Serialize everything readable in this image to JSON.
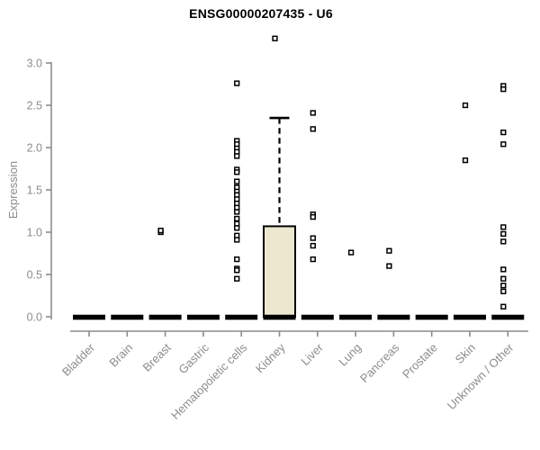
{
  "chart_data": {
    "type": "boxplot",
    "title": "ENSG00000207435 - U6",
    "ylabel": "Expression",
    "xlabel": "",
    "ylim": [
      0,
      3.4
    ],
    "yticks": [
      0.0,
      0.5,
      1.0,
      1.5,
      2.0,
      2.5,
      3.0
    ],
    "grid": false,
    "legend": null,
    "categories": [
      "Bladder",
      "Brain",
      "Breast",
      "Gastric",
      "Hematopoietic cells",
      "Kidney",
      "Liver",
      "Lung",
      "Pancreas",
      "Prostate",
      "Skin",
      "Unknown / Other"
    ],
    "boxes": [
      {
        "category": "Bladder",
        "q1": 0,
        "median": 0,
        "q3": 0,
        "whisker_low": 0,
        "whisker_high": 0,
        "outliers": []
      },
      {
        "category": "Brain",
        "q1": 0,
        "median": 0,
        "q3": 0,
        "whisker_low": 0,
        "whisker_high": 0,
        "outliers": []
      },
      {
        "category": "Breast",
        "q1": 0,
        "median": 0,
        "q3": 0,
        "whisker_low": 0,
        "whisker_high": 0,
        "outliers": [
          1.0,
          1.02
        ]
      },
      {
        "category": "Gastric",
        "q1": 0,
        "median": 0,
        "q3": 0,
        "whisker_low": 0,
        "whisker_high": 0,
        "outliers": []
      },
      {
        "category": "Hematopoietic cells",
        "q1": 0,
        "median": 0,
        "q3": 0,
        "whisker_low": 0,
        "whisker_high": 0,
        "outliers": [
          2.76,
          2.08,
          2.04,
          1.99,
          1.95,
          1.9,
          1.74,
          1.71,
          1.6,
          1.53,
          1.48,
          1.44,
          1.39,
          1.34,
          1.29,
          1.24,
          1.16,
          1.1,
          1.05,
          0.96,
          0.91,
          0.68,
          0.57,
          0.55,
          0.45
        ]
      },
      {
        "category": "Kidney",
        "q1": 0,
        "median": 0,
        "q3": 1.07,
        "whisker_low": 0,
        "whisker_high": 2.35,
        "outliers": [
          3.29
        ]
      },
      {
        "category": "Liver",
        "q1": 0,
        "median": 0,
        "q3": 0,
        "whisker_low": 0,
        "whisker_high": 0,
        "outliers": [
          2.41,
          2.22,
          1.21,
          1.18,
          0.93,
          0.84,
          0.68
        ]
      },
      {
        "category": "Lung",
        "q1": 0,
        "median": 0,
        "q3": 0,
        "whisker_low": 0,
        "whisker_high": 0,
        "outliers": [
          0.76
        ]
      },
      {
        "category": "Pancreas",
        "q1": 0,
        "median": 0,
        "q3": 0,
        "whisker_low": 0,
        "whisker_high": 0,
        "outliers": [
          0.78,
          0.6
        ]
      },
      {
        "category": "Prostate",
        "q1": 0,
        "median": 0,
        "q3": 0,
        "whisker_low": 0,
        "whisker_high": 0,
        "outliers": []
      },
      {
        "category": "Skin",
        "q1": 0,
        "median": 0,
        "q3": 0,
        "whisker_low": 0,
        "whisker_high": 0,
        "outliers": [
          2.5,
          1.85
        ]
      },
      {
        "category": "Unknown / Other",
        "q1": 0,
        "median": 0,
        "q3": 0,
        "whisker_low": 0,
        "whisker_high": 0,
        "outliers": [
          2.73,
          2.69,
          2.18,
          2.04,
          1.06,
          0.98,
          0.89,
          0.56,
          0.45,
          0.37,
          0.3,
          0.12
        ]
      }
    ],
    "colors": {
      "box_fill": "#ece8d0",
      "box_stroke": "#000000",
      "median": "#000000",
      "whisker": "#000000",
      "point_fill": "#ffffff",
      "point_stroke": "#000000",
      "axis": "#8c8c8c",
      "tick_label": "#8c8c8c",
      "axis_label": "#8c8c8c",
      "title": "#000000",
      "background": "#ffffff"
    }
  }
}
